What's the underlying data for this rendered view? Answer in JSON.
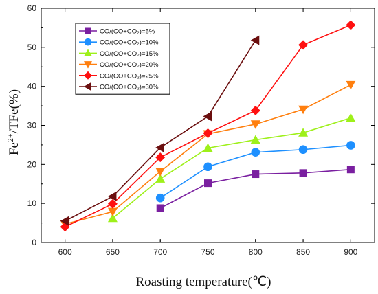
{
  "chart_data": {
    "type": "line",
    "xlabel": "Roasting temperature(℃)",
    "ylabel_main": "Fe",
    "ylabel_sup": "2+",
    "ylabel_rest": "/TFe(%)",
    "xlim": [
      575,
      925
    ],
    "ylim": [
      0,
      60
    ],
    "xticks": [
      600,
      650,
      700,
      750,
      800,
      850,
      900
    ],
    "yticks": [
      0,
      10,
      20,
      30,
      40,
      50,
      60
    ],
    "grid": false,
    "legend_position": "top-left",
    "series": [
      {
        "name": "CO/(CO+CO₂)=5%",
        "color": "#7a1fa0",
        "marker": "square",
        "x": [
          700,
          750,
          800,
          850,
          900
        ],
        "y": [
          8.8,
          15.2,
          17.5,
          17.8,
          18.7
        ]
      },
      {
        "name": "CO/(CO+CO₂)=10%",
        "color": "#1e90ff",
        "marker": "circle",
        "x": [
          700,
          750,
          800,
          850,
          900
        ],
        "y": [
          11.4,
          19.4,
          23.1,
          23.8,
          24.9
        ]
      },
      {
        "name": "CO/(CO+CO₂)=15%",
        "color": "#9ef01a",
        "marker": "triangle-up",
        "x": [
          650,
          700,
          750,
          800,
          850,
          900
        ],
        "y": [
          6.2,
          16.3,
          24.2,
          26.3,
          28.1,
          31.9
        ]
      },
      {
        "name": "CO/(CO+CO₂)=20%",
        "color": "#ff7f0e",
        "marker": "triangle-down",
        "x": [
          600,
          650,
          700,
          750,
          800,
          850,
          900
        ],
        "y": [
          4.7,
          7.9,
          18.2,
          27.8,
          30.3,
          34.1,
          40.4
        ]
      },
      {
        "name": "CO/(CO+CO₂)=25%",
        "color": "#ff1010",
        "marker": "diamond",
        "x": [
          600,
          650,
          700,
          750,
          800,
          850,
          900
        ],
        "y": [
          4.0,
          9.9,
          21.8,
          28.0,
          33.8,
          50.6,
          55.7
        ]
      },
      {
        "name": "CO/(CO+CO₂)=30%",
        "color": "#6b0f0f",
        "marker": "triangle-left",
        "x": [
          600,
          650,
          700,
          750,
          800
        ],
        "y": [
          5.5,
          11.8,
          24.3,
          32.3,
          51.8
        ]
      }
    ]
  }
}
